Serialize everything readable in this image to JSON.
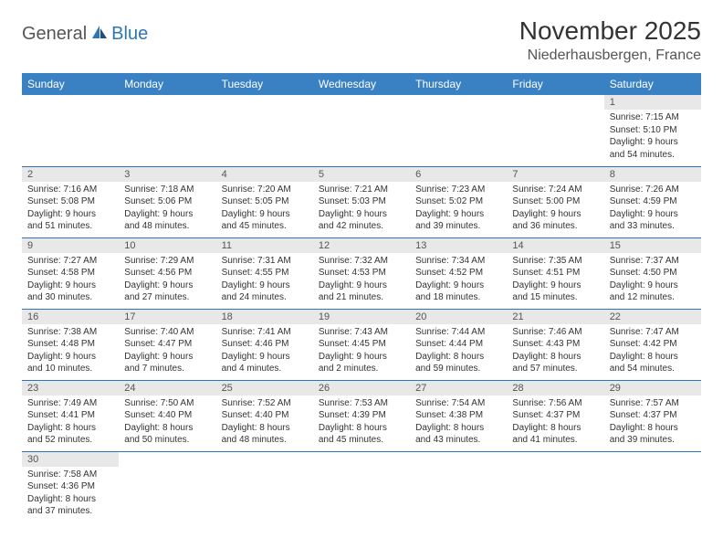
{
  "logo": {
    "part1": "General",
    "part2": "Blue"
  },
  "title": "November 2025",
  "location": "Niederhausbergen, France",
  "colors": {
    "header_bg": "#3a81c4",
    "rule": "#2e75b6",
    "daynum_bg": "#e8e8e8",
    "logo_blue": "#2e75b6"
  },
  "weekdays": [
    "Sunday",
    "Monday",
    "Tuesday",
    "Wednesday",
    "Thursday",
    "Friday",
    "Saturday"
  ],
  "weeks": [
    [
      {
        "n": "",
        "sr": "",
        "ss": "",
        "dl": ""
      },
      {
        "n": "",
        "sr": "",
        "ss": "",
        "dl": ""
      },
      {
        "n": "",
        "sr": "",
        "ss": "",
        "dl": ""
      },
      {
        "n": "",
        "sr": "",
        "ss": "",
        "dl": ""
      },
      {
        "n": "",
        "sr": "",
        "ss": "",
        "dl": ""
      },
      {
        "n": "",
        "sr": "",
        "ss": "",
        "dl": ""
      },
      {
        "n": "1",
        "sr": "Sunrise: 7:15 AM",
        "ss": "Sunset: 5:10 PM",
        "dl": "Daylight: 9 hours and 54 minutes."
      }
    ],
    [
      {
        "n": "2",
        "sr": "Sunrise: 7:16 AM",
        "ss": "Sunset: 5:08 PM",
        "dl": "Daylight: 9 hours and 51 minutes."
      },
      {
        "n": "3",
        "sr": "Sunrise: 7:18 AM",
        "ss": "Sunset: 5:06 PM",
        "dl": "Daylight: 9 hours and 48 minutes."
      },
      {
        "n": "4",
        "sr": "Sunrise: 7:20 AM",
        "ss": "Sunset: 5:05 PM",
        "dl": "Daylight: 9 hours and 45 minutes."
      },
      {
        "n": "5",
        "sr": "Sunrise: 7:21 AM",
        "ss": "Sunset: 5:03 PM",
        "dl": "Daylight: 9 hours and 42 minutes."
      },
      {
        "n": "6",
        "sr": "Sunrise: 7:23 AM",
        "ss": "Sunset: 5:02 PM",
        "dl": "Daylight: 9 hours and 39 minutes."
      },
      {
        "n": "7",
        "sr": "Sunrise: 7:24 AM",
        "ss": "Sunset: 5:00 PM",
        "dl": "Daylight: 9 hours and 36 minutes."
      },
      {
        "n": "8",
        "sr": "Sunrise: 7:26 AM",
        "ss": "Sunset: 4:59 PM",
        "dl": "Daylight: 9 hours and 33 minutes."
      }
    ],
    [
      {
        "n": "9",
        "sr": "Sunrise: 7:27 AM",
        "ss": "Sunset: 4:58 PM",
        "dl": "Daylight: 9 hours and 30 minutes."
      },
      {
        "n": "10",
        "sr": "Sunrise: 7:29 AM",
        "ss": "Sunset: 4:56 PM",
        "dl": "Daylight: 9 hours and 27 minutes."
      },
      {
        "n": "11",
        "sr": "Sunrise: 7:31 AM",
        "ss": "Sunset: 4:55 PM",
        "dl": "Daylight: 9 hours and 24 minutes."
      },
      {
        "n": "12",
        "sr": "Sunrise: 7:32 AM",
        "ss": "Sunset: 4:53 PM",
        "dl": "Daylight: 9 hours and 21 minutes."
      },
      {
        "n": "13",
        "sr": "Sunrise: 7:34 AM",
        "ss": "Sunset: 4:52 PM",
        "dl": "Daylight: 9 hours and 18 minutes."
      },
      {
        "n": "14",
        "sr": "Sunrise: 7:35 AM",
        "ss": "Sunset: 4:51 PM",
        "dl": "Daylight: 9 hours and 15 minutes."
      },
      {
        "n": "15",
        "sr": "Sunrise: 7:37 AM",
        "ss": "Sunset: 4:50 PM",
        "dl": "Daylight: 9 hours and 12 minutes."
      }
    ],
    [
      {
        "n": "16",
        "sr": "Sunrise: 7:38 AM",
        "ss": "Sunset: 4:48 PM",
        "dl": "Daylight: 9 hours and 10 minutes."
      },
      {
        "n": "17",
        "sr": "Sunrise: 7:40 AM",
        "ss": "Sunset: 4:47 PM",
        "dl": "Daylight: 9 hours and 7 minutes."
      },
      {
        "n": "18",
        "sr": "Sunrise: 7:41 AM",
        "ss": "Sunset: 4:46 PM",
        "dl": "Daylight: 9 hours and 4 minutes."
      },
      {
        "n": "19",
        "sr": "Sunrise: 7:43 AM",
        "ss": "Sunset: 4:45 PM",
        "dl": "Daylight: 9 hours and 2 minutes."
      },
      {
        "n": "20",
        "sr": "Sunrise: 7:44 AM",
        "ss": "Sunset: 4:44 PM",
        "dl": "Daylight: 8 hours and 59 minutes."
      },
      {
        "n": "21",
        "sr": "Sunrise: 7:46 AM",
        "ss": "Sunset: 4:43 PM",
        "dl": "Daylight: 8 hours and 57 minutes."
      },
      {
        "n": "22",
        "sr": "Sunrise: 7:47 AM",
        "ss": "Sunset: 4:42 PM",
        "dl": "Daylight: 8 hours and 54 minutes."
      }
    ],
    [
      {
        "n": "23",
        "sr": "Sunrise: 7:49 AM",
        "ss": "Sunset: 4:41 PM",
        "dl": "Daylight: 8 hours and 52 minutes."
      },
      {
        "n": "24",
        "sr": "Sunrise: 7:50 AM",
        "ss": "Sunset: 4:40 PM",
        "dl": "Daylight: 8 hours and 50 minutes."
      },
      {
        "n": "25",
        "sr": "Sunrise: 7:52 AM",
        "ss": "Sunset: 4:40 PM",
        "dl": "Daylight: 8 hours and 48 minutes."
      },
      {
        "n": "26",
        "sr": "Sunrise: 7:53 AM",
        "ss": "Sunset: 4:39 PM",
        "dl": "Daylight: 8 hours and 45 minutes."
      },
      {
        "n": "27",
        "sr": "Sunrise: 7:54 AM",
        "ss": "Sunset: 4:38 PM",
        "dl": "Daylight: 8 hours and 43 minutes."
      },
      {
        "n": "28",
        "sr": "Sunrise: 7:56 AM",
        "ss": "Sunset: 4:37 PM",
        "dl": "Daylight: 8 hours and 41 minutes."
      },
      {
        "n": "29",
        "sr": "Sunrise: 7:57 AM",
        "ss": "Sunset: 4:37 PM",
        "dl": "Daylight: 8 hours and 39 minutes."
      }
    ],
    [
      {
        "n": "30",
        "sr": "Sunrise: 7:58 AM",
        "ss": "Sunset: 4:36 PM",
        "dl": "Daylight: 8 hours and 37 minutes."
      },
      {
        "n": "",
        "sr": "",
        "ss": "",
        "dl": ""
      },
      {
        "n": "",
        "sr": "",
        "ss": "",
        "dl": ""
      },
      {
        "n": "",
        "sr": "",
        "ss": "",
        "dl": ""
      },
      {
        "n": "",
        "sr": "",
        "ss": "",
        "dl": ""
      },
      {
        "n": "",
        "sr": "",
        "ss": "",
        "dl": ""
      },
      {
        "n": "",
        "sr": "",
        "ss": "",
        "dl": ""
      }
    ]
  ]
}
